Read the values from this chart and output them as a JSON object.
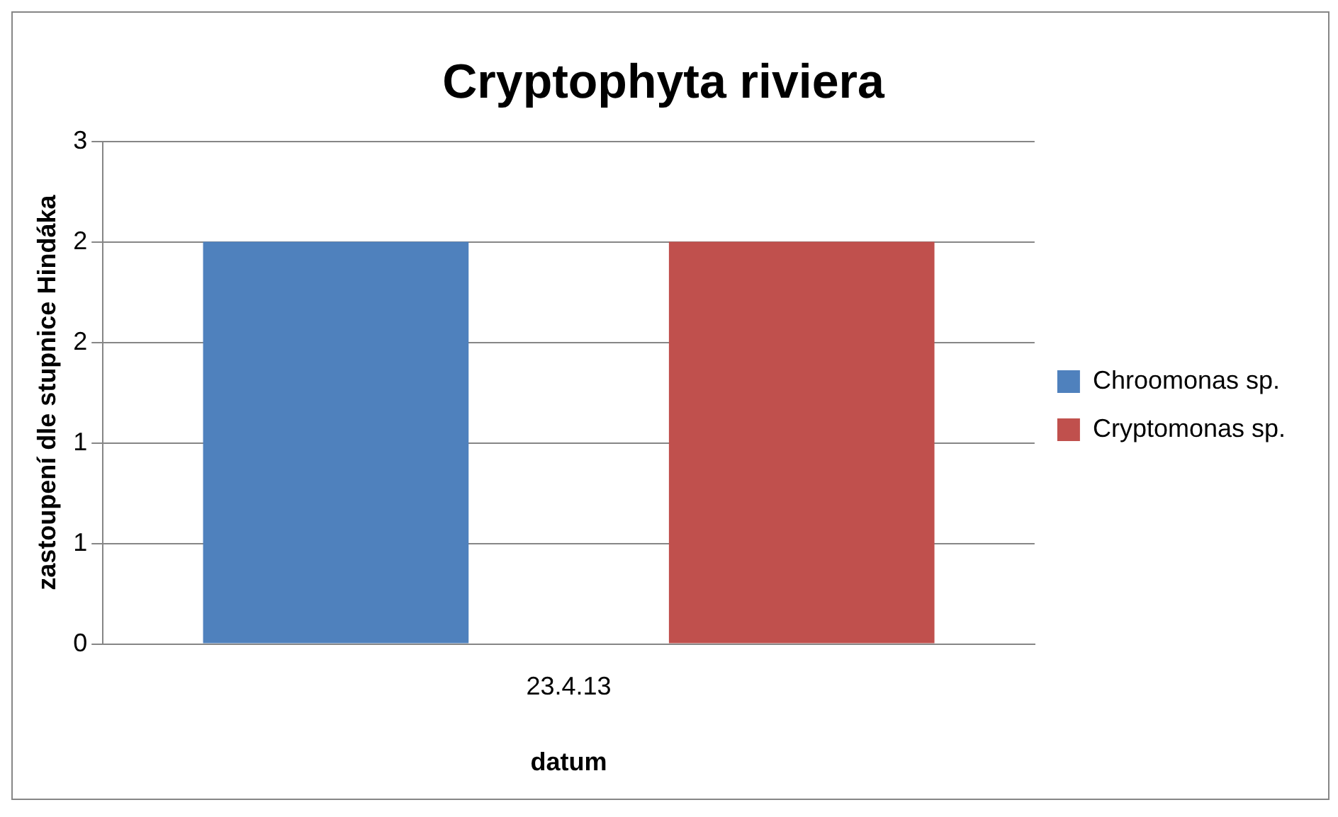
{
  "chart_data": {
    "type": "bar",
    "title": "Cryptophyta riviera",
    "xlabel": "datum",
    "ylabel": "zastoupení dle stupnice Hindáka",
    "categories": [
      "23.4.13"
    ],
    "series": [
      {
        "name": "Chroomonas sp.",
        "color": "#4f81bd",
        "values": [
          2.4
        ]
      },
      {
        "name": "Cryptomonas sp.",
        "color": "#c0504d",
        "values": [
          2.4
        ]
      }
    ],
    "ylim": [
      0,
      3
    ],
    "yticks": [
      0,
      {
        "value": 0.6,
        "label": "1"
      },
      {
        "value": 1.2,
        "label": "1"
      },
      {
        "value": 1.8,
        "label": "2"
      },
      {
        "value": 2.4,
        "label": "2"
      },
      {
        "value": 3,
        "label": "3"
      }
    ],
    "grid": "y",
    "legend": "right"
  }
}
